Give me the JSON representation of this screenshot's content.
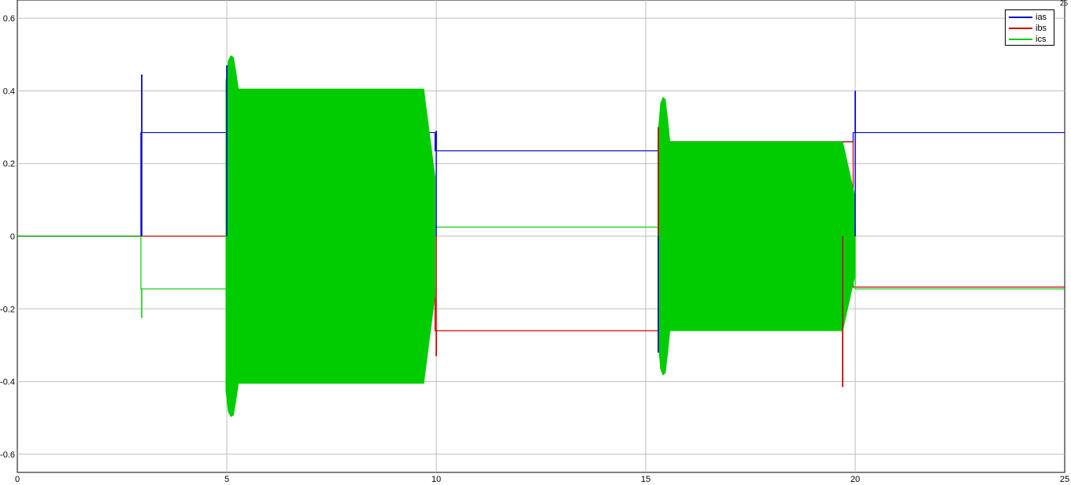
{
  "chart_data": {
    "type": "line",
    "title": "",
    "xlabel": "",
    "ylabel": "",
    "xlim": [
      0,
      25
    ],
    "ylim": [
      -0.65,
      0.65
    ],
    "x_ticks": [
      0,
      5,
      10,
      15,
      20,
      25
    ],
    "y_ticks": [
      -0.6,
      -0.4,
      -0.2,
      0,
      0.2,
      0.4,
      0.6
    ],
    "x_tick_labels": [
      "0",
      "5",
      "10",
      "15",
      "20",
      "25"
    ],
    "y_tick_labels": [
      "-0.6",
      "-0.4",
      "-0.2",
      "0",
      "0.2",
      "0.4",
      "0.6"
    ],
    "grid": true,
    "legend_position": "top-right",
    "corner_label": "25",
    "series": [
      {
        "name": "ias",
        "color": "#0000cc",
        "steps": [
          [
            0,
            0
          ],
          [
            2.95,
            0
          ],
          [
            2.95,
            0.285
          ],
          [
            4.98,
            0.285
          ],
          [
            9.97,
            0.235
          ],
          [
            14.98,
            0.235
          ],
          [
            15.3,
            0.26
          ],
          [
            19.95,
            0.285
          ],
          [
            25,
            0.285
          ]
        ],
        "spikes": [
          [
            2.97,
            0.445
          ],
          [
            5.0,
            0.47
          ],
          [
            10.0,
            0.29
          ],
          [
            15.3,
            -0.32
          ],
          [
            20.0,
            0.4
          ]
        ]
      },
      {
        "name": "ibs",
        "color": "#cc0000",
        "steps": [
          [
            0,
            0
          ],
          [
            2.95,
            0
          ],
          [
            4.98,
            0
          ],
          [
            9.97,
            -0.26
          ],
          [
            14.98,
            -0.26
          ],
          [
            15.3,
            0.26
          ],
          [
            19.95,
            -0.14
          ],
          [
            25,
            -0.14
          ]
        ],
        "spikes": [
          [
            10.0,
            -0.33
          ],
          [
            15.3,
            0.3
          ],
          [
            19.7,
            -0.415
          ]
        ]
      },
      {
        "name": "ics",
        "color": "#00cc00",
        "steps": [
          [
            0,
            0
          ],
          [
            2.95,
            0
          ],
          [
            2.95,
            -0.145
          ],
          [
            4.98,
            -0.145
          ],
          [
            9.97,
            0.025
          ],
          [
            14.98,
            0.025
          ],
          [
            20.0,
            -0.145
          ],
          [
            25,
            -0.145
          ]
        ],
        "spikes": [
          [
            2.97,
            -0.225
          ]
        ]
      }
    ],
    "oscillation_bands": [
      {
        "x_start": 4.98,
        "x_end": 9.7,
        "amplitude": 0.405,
        "peak": 0.51,
        "color": "#00cc00"
      },
      {
        "x_start": 15.3,
        "x_end": 19.7,
        "amplitude": 0.26,
        "peak": 0.4,
        "color": "#00cc00"
      }
    ]
  }
}
